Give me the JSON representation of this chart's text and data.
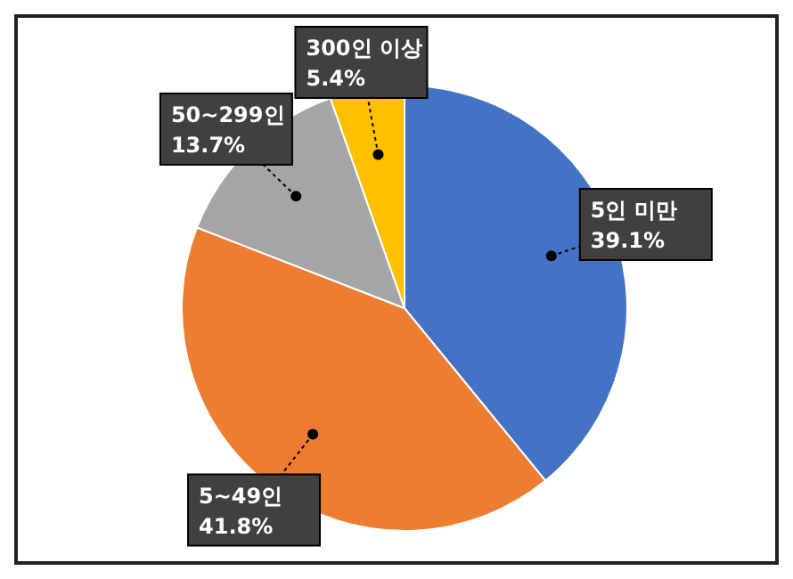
{
  "chart_data": {
    "type": "pie",
    "categories": [
      "5인 미만",
      "5~49인",
      "50~299인",
      "300인 이상"
    ],
    "values": [
      39.1,
      41.8,
      13.7,
      5.4
    ],
    "colors": [
      "#4472c4",
      "#ed7d31",
      "#a5a5a5",
      "#ffc000"
    ],
    "value_labels": [
      "39.1%",
      "41.8%",
      "13.7%",
      "5.4%"
    ]
  }
}
